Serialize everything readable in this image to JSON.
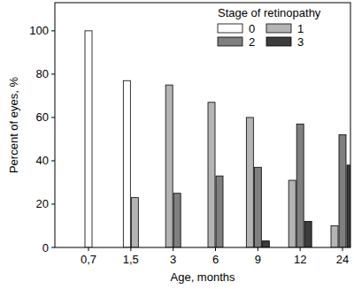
{
  "chart_data": {
    "type": "bar",
    "categories": [
      "0,7",
      "1,5",
      "3",
      "6",
      "9",
      "12",
      "24"
    ],
    "series": [
      {
        "name": "0",
        "color": "#ffffff",
        "values": [
          100,
          77,
          null,
          null,
          null,
          null,
          null
        ]
      },
      {
        "name": "1",
        "color": "#b4b4b4",
        "values": [
          null,
          23,
          75,
          67,
          60,
          31,
          10
        ]
      },
      {
        "name": "2",
        "color": "#7f7f7f",
        "values": [
          null,
          null,
          25,
          33,
          37,
          57,
          52
        ]
      },
      {
        "name": "3",
        "color": "#3c3c3c",
        "values": [
          null,
          null,
          null,
          null,
          3,
          12,
          38
        ]
      }
    ],
    "x_label": "Age, months",
    "y_label": "Percent of eyes, %",
    "legend_title": "Stage of retinopathy",
    "legend": "top-right",
    "ylim": [
      0,
      113
    ],
    "yticks": [
      0,
      20,
      40,
      60,
      80,
      100
    ],
    "grid": false
  }
}
